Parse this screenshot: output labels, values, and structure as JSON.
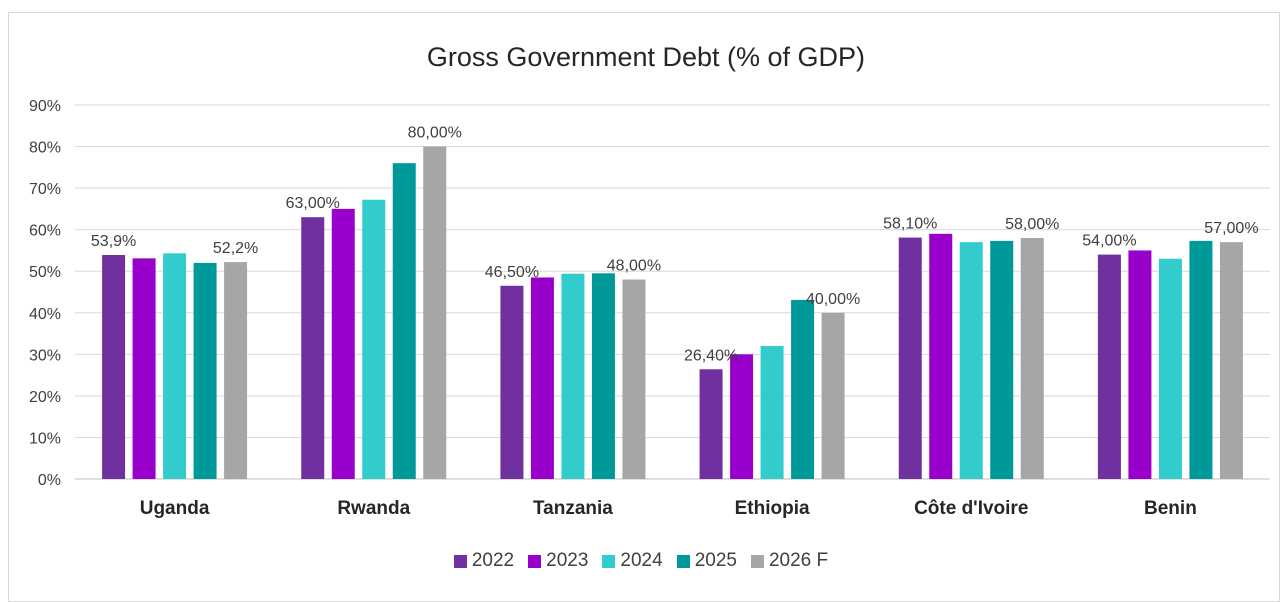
{
  "chart_data": {
    "type": "bar",
    "title": "Gross Government Debt (% of GDP)",
    "categories": [
      "Uganda",
      "Rwanda",
      "Tanzania",
      "Ethiopia",
      "Côte d'Ivoire",
      "Benin"
    ],
    "series": [
      {
        "name": "2022",
        "color": "#7030a0",
        "values": [
          53.9,
          63.0,
          46.5,
          26.4,
          58.1,
          54.0
        ]
      },
      {
        "name": "2023",
        "color": "#9900cc",
        "values": [
          53.1,
          65.0,
          48.5,
          30.0,
          59.0,
          55.0
        ]
      },
      {
        "name": "2024",
        "color": "#33cccc",
        "values": [
          54.3,
          67.2,
          49.4,
          32.0,
          57.0,
          53.0
        ]
      },
      {
        "name": "2025",
        "color": "#009999",
        "values": [
          52.0,
          76.0,
          49.5,
          43.1,
          57.3,
          57.3
        ]
      },
      {
        "name": "2026 F",
        "color": "#a6a6a6",
        "values": [
          52.2,
          80.0,
          48.0,
          40.0,
          58.0,
          57.0
        ]
      }
    ],
    "data_labels": [
      {
        "category": 0,
        "series": 0,
        "text": "53,9%"
      },
      {
        "category": 0,
        "series": 4,
        "text": "52,2%"
      },
      {
        "category": 1,
        "series": 0,
        "text": "63,00%"
      },
      {
        "category": 1,
        "series": 4,
        "text": "80,00%"
      },
      {
        "category": 2,
        "series": 0,
        "text": "46,50%"
      },
      {
        "category": 2,
        "series": 4,
        "text": "48,00%"
      },
      {
        "category": 3,
        "series": 0,
        "text": "26,40%"
      },
      {
        "category": 3,
        "series": 4,
        "text": "40,00%"
      },
      {
        "category": 4,
        "series": 0,
        "text": "58,10%"
      },
      {
        "category": 4,
        "series": 4,
        "text": "58,00%"
      },
      {
        "category": 5,
        "series": 0,
        "text": "54,00%"
      },
      {
        "category": 5,
        "series": 4,
        "text": "57,00%"
      }
    ],
    "ylim": [
      0,
      90
    ],
    "yticks": [
      "0%",
      "10%",
      "20%",
      "30%",
      "40%",
      "50%",
      "60%",
      "70%",
      "80%",
      "90%"
    ],
    "grid": true,
    "legend_position": "bottom"
  }
}
